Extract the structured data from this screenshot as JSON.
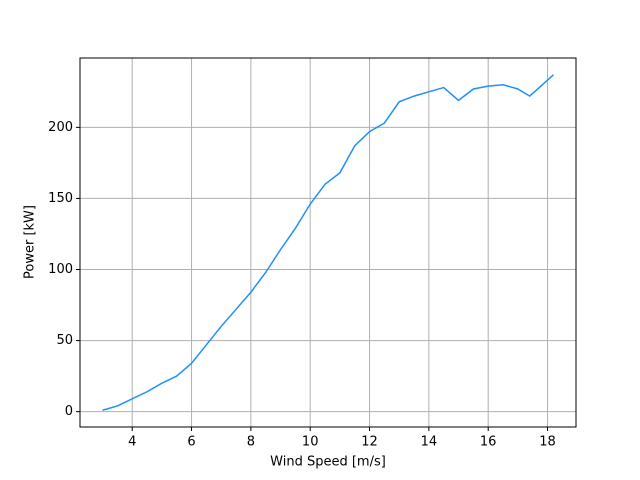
{
  "chart_data": {
    "type": "line",
    "xlabel": "Wind Speed [m/s]",
    "ylabel": "Power [kW]",
    "x": [
      3,
      3.5,
      4,
      4.5,
      5,
      5.5,
      6,
      6.5,
      7,
      7.5,
      8,
      8.5,
      9,
      9.5,
      10,
      10.5,
      11,
      11.5,
      12,
      12.5,
      13,
      13.5,
      14,
      14.5,
      15,
      15.5,
      16,
      16.5,
      17,
      17.4,
      18.2
    ],
    "series": [
      {
        "color": "#1e90ff",
        "values": [
          1,
          4,
          9,
          14,
          20,
          25,
          34,
          47,
          60,
          72,
          84,
          98,
          114,
          129,
          146,
          160,
          168,
          187,
          197,
          203,
          218,
          222,
          225,
          228,
          219,
          227,
          229,
          230,
          227,
          222,
          237
        ]
      }
    ],
    "xlim": [
      2.24,
      18.96
    ],
    "ylim": [
      -10.8,
      248.8
    ],
    "xticks": [
      4,
      6,
      8,
      10,
      12,
      14,
      16,
      18
    ],
    "yticks": [
      0,
      50,
      100,
      150,
      200
    ],
    "grid": true
  }
}
